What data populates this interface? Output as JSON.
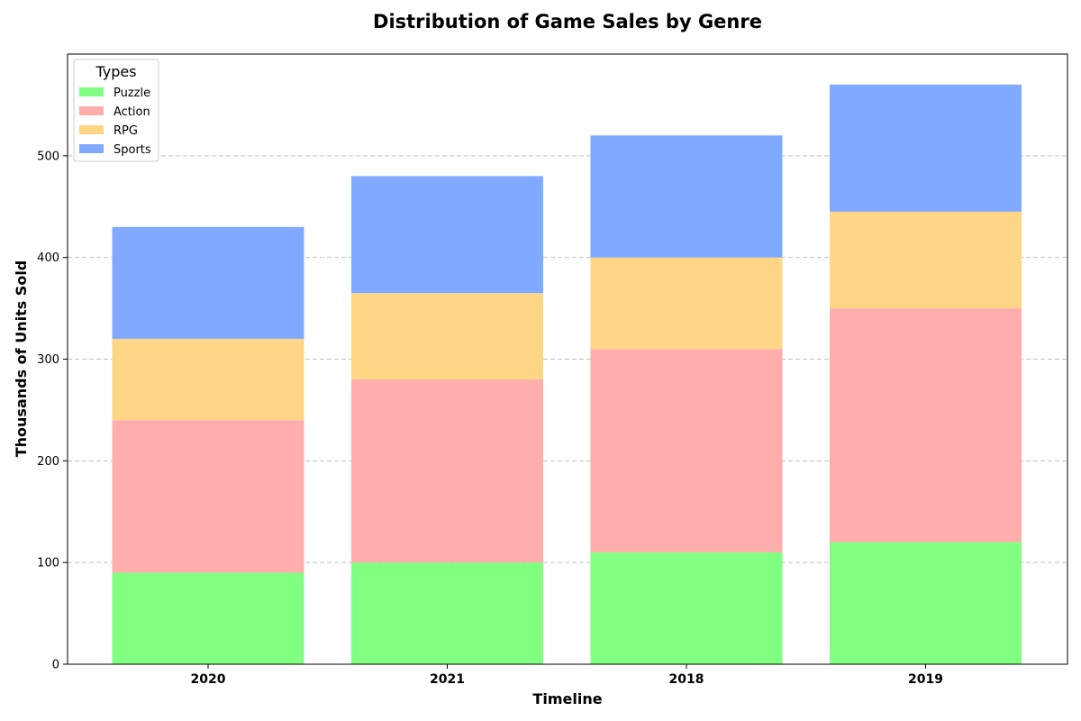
{
  "chart_data": {
    "type": "bar",
    "stacked": true,
    "title": "Distribution of Game Sales by Genre",
    "xlabel": "Timeline",
    "ylabel": "Thousands of Units Sold",
    "categories": [
      "2020",
      "2021",
      "2018",
      "2019"
    ],
    "ylim": [
      0,
      600
    ],
    "yticks": [
      0,
      100,
      200,
      300,
      400,
      500
    ],
    "grid": "y-dashed",
    "legend": {
      "title": "Types",
      "placement": "top-left"
    },
    "series": [
      {
        "name": "Puzzle",
        "color": "#80ff80",
        "values": [
          90,
          100,
          110,
          120
        ]
      },
      {
        "name": "Action",
        "color": "#ffadad",
        "values": [
          150,
          180,
          200,
          230
        ]
      },
      {
        "name": "RPG",
        "color": "#ffd685",
        "values": [
          80,
          85,
          90,
          95
        ]
      },
      {
        "name": "Sports",
        "color": "#80aaff",
        "values": [
          110,
          115,
          120,
          125
        ]
      }
    ]
  }
}
